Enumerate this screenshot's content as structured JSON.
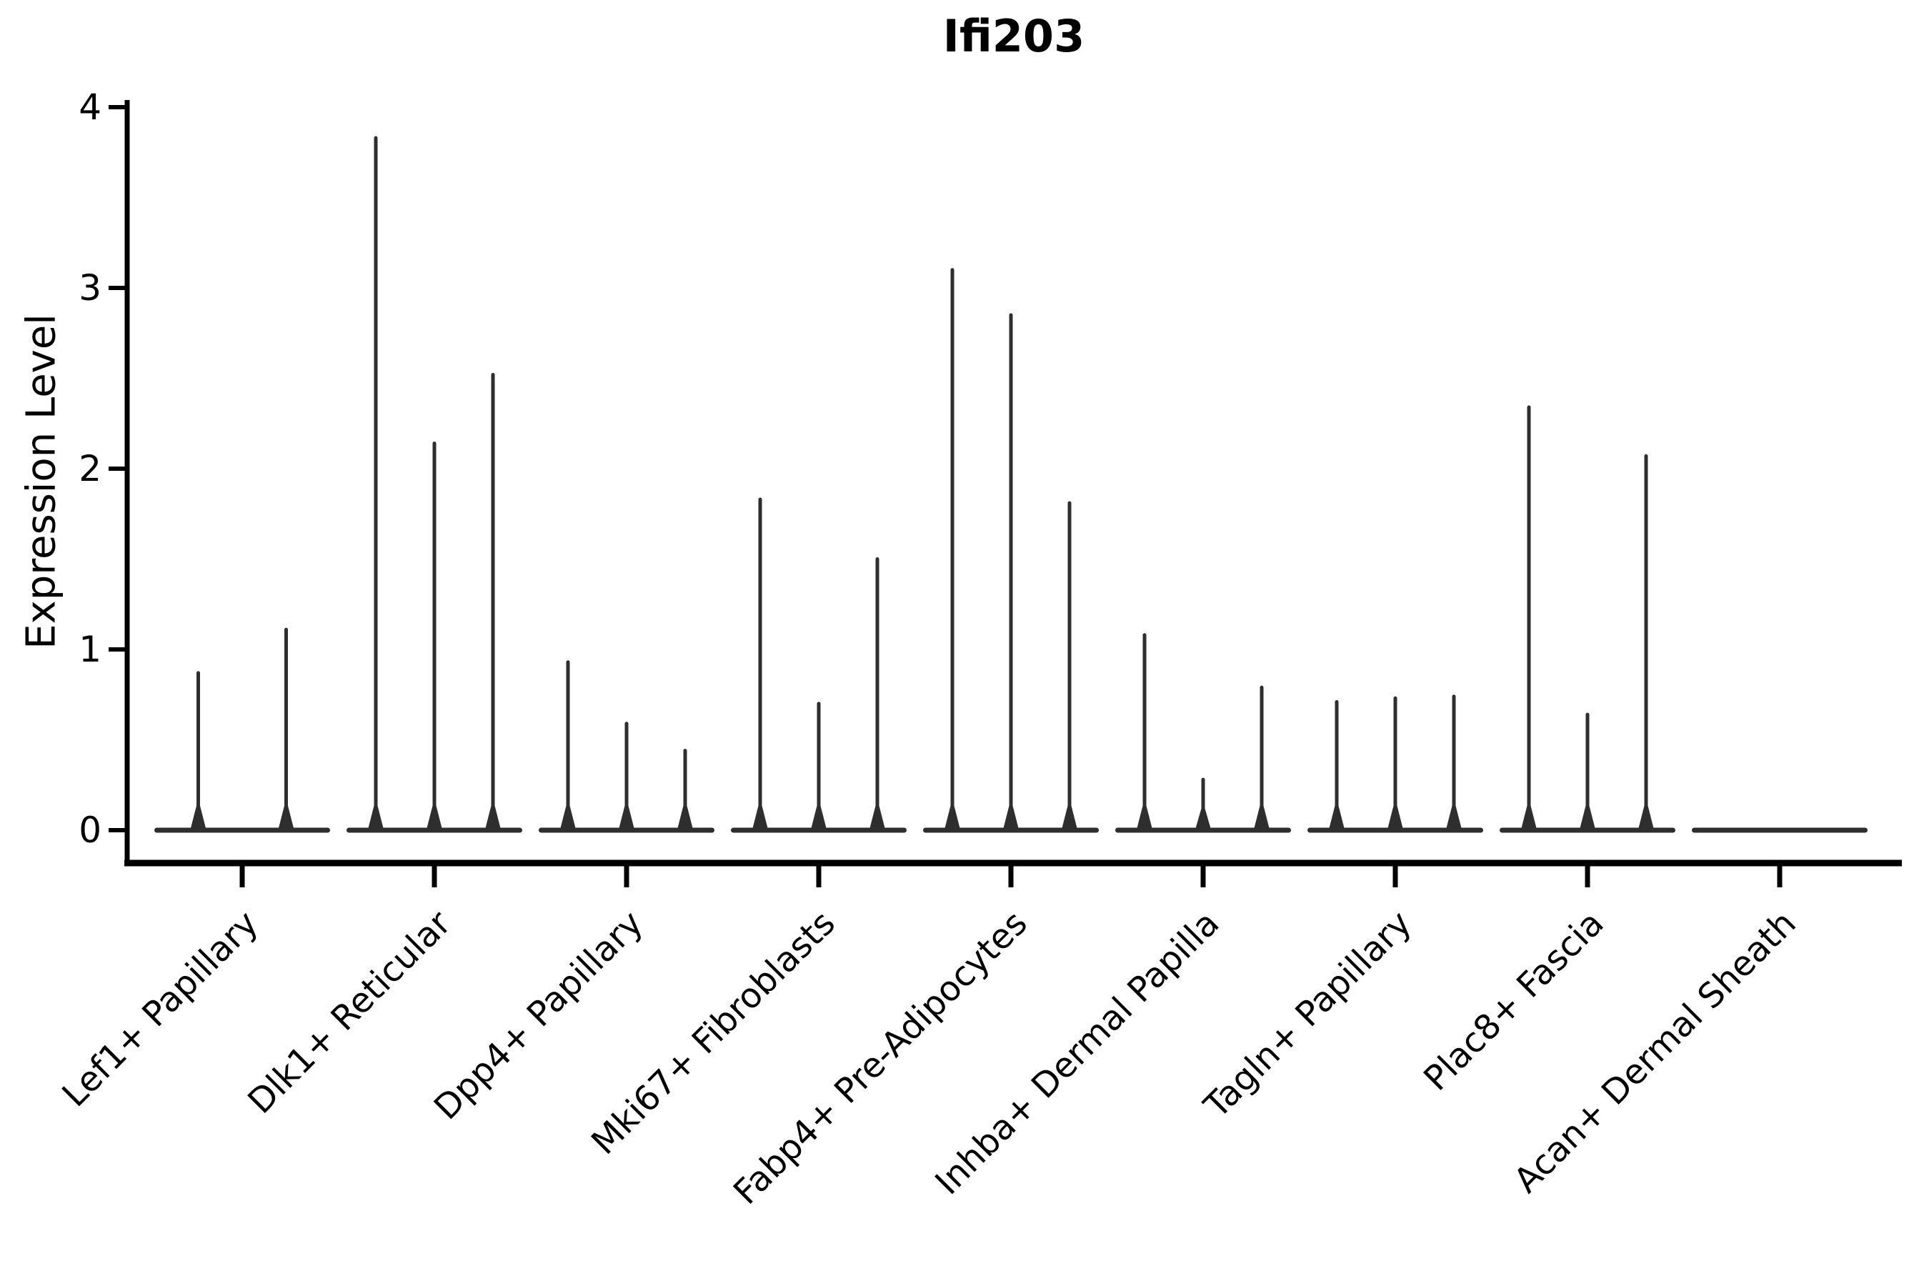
{
  "chart_data": {
    "type": "violin",
    "title": "Ifi203",
    "ylabel": "Expression Level",
    "xlabel": "",
    "ylim": [
      0,
      4
    ],
    "yticks": [
      "0",
      "1",
      "2",
      "3",
      "4"
    ],
    "ytick_values": [
      0,
      1,
      2,
      3,
      4
    ],
    "x_tick_rotation_deg": 45,
    "grid": "off",
    "legend": "none",
    "categories": [
      "Lef1+ Papillary",
      "Dlk1+ Reticular",
      "Dpp4+ Papillary",
      "Mki67+ Fibroblasts",
      "Fabp4+ Pre-Adipocytes",
      "Inhba+ Dermal Papilla",
      "Tagln+ Papillary",
      "Plac8+ Fascia",
      "Acan+ Dermal Sheath"
    ],
    "groups": [
      {
        "category": "Lef1+ Papillary",
        "violin_peaks": [
          0.87,
          1.11
        ]
      },
      {
        "category": "Dlk1+ Reticular",
        "violin_peaks": [
          3.83,
          2.14,
          2.52
        ]
      },
      {
        "category": "Dpp4+ Papillary",
        "violin_peaks": [
          0.93,
          0.59,
          0.44
        ]
      },
      {
        "category": "Mki67+ Fibroblasts",
        "violin_peaks": [
          1.83,
          0.7,
          1.5
        ]
      },
      {
        "category": "Fabp4+ Pre-Adipocytes",
        "violin_peaks": [
          3.1,
          2.85,
          1.81
        ]
      },
      {
        "category": "Inhba+ Dermal Papilla",
        "violin_peaks": [
          1.08,
          0.28,
          0.79
        ]
      },
      {
        "category": "Tagln+ Papillary",
        "violin_peaks": [
          0.71,
          0.73,
          0.74
        ]
      },
      {
        "category": "Plac8+ Fascia",
        "violin_peaks": [
          2.34,
          0.64,
          2.07
        ]
      },
      {
        "category": "Acan+ Dermal Sheath",
        "violin_peaks": [
          0,
          0,
          0
        ]
      }
    ],
    "colors": {
      "violin": "#2e2e2e",
      "axis": "#000000",
      "background": "#ffffff"
    }
  }
}
